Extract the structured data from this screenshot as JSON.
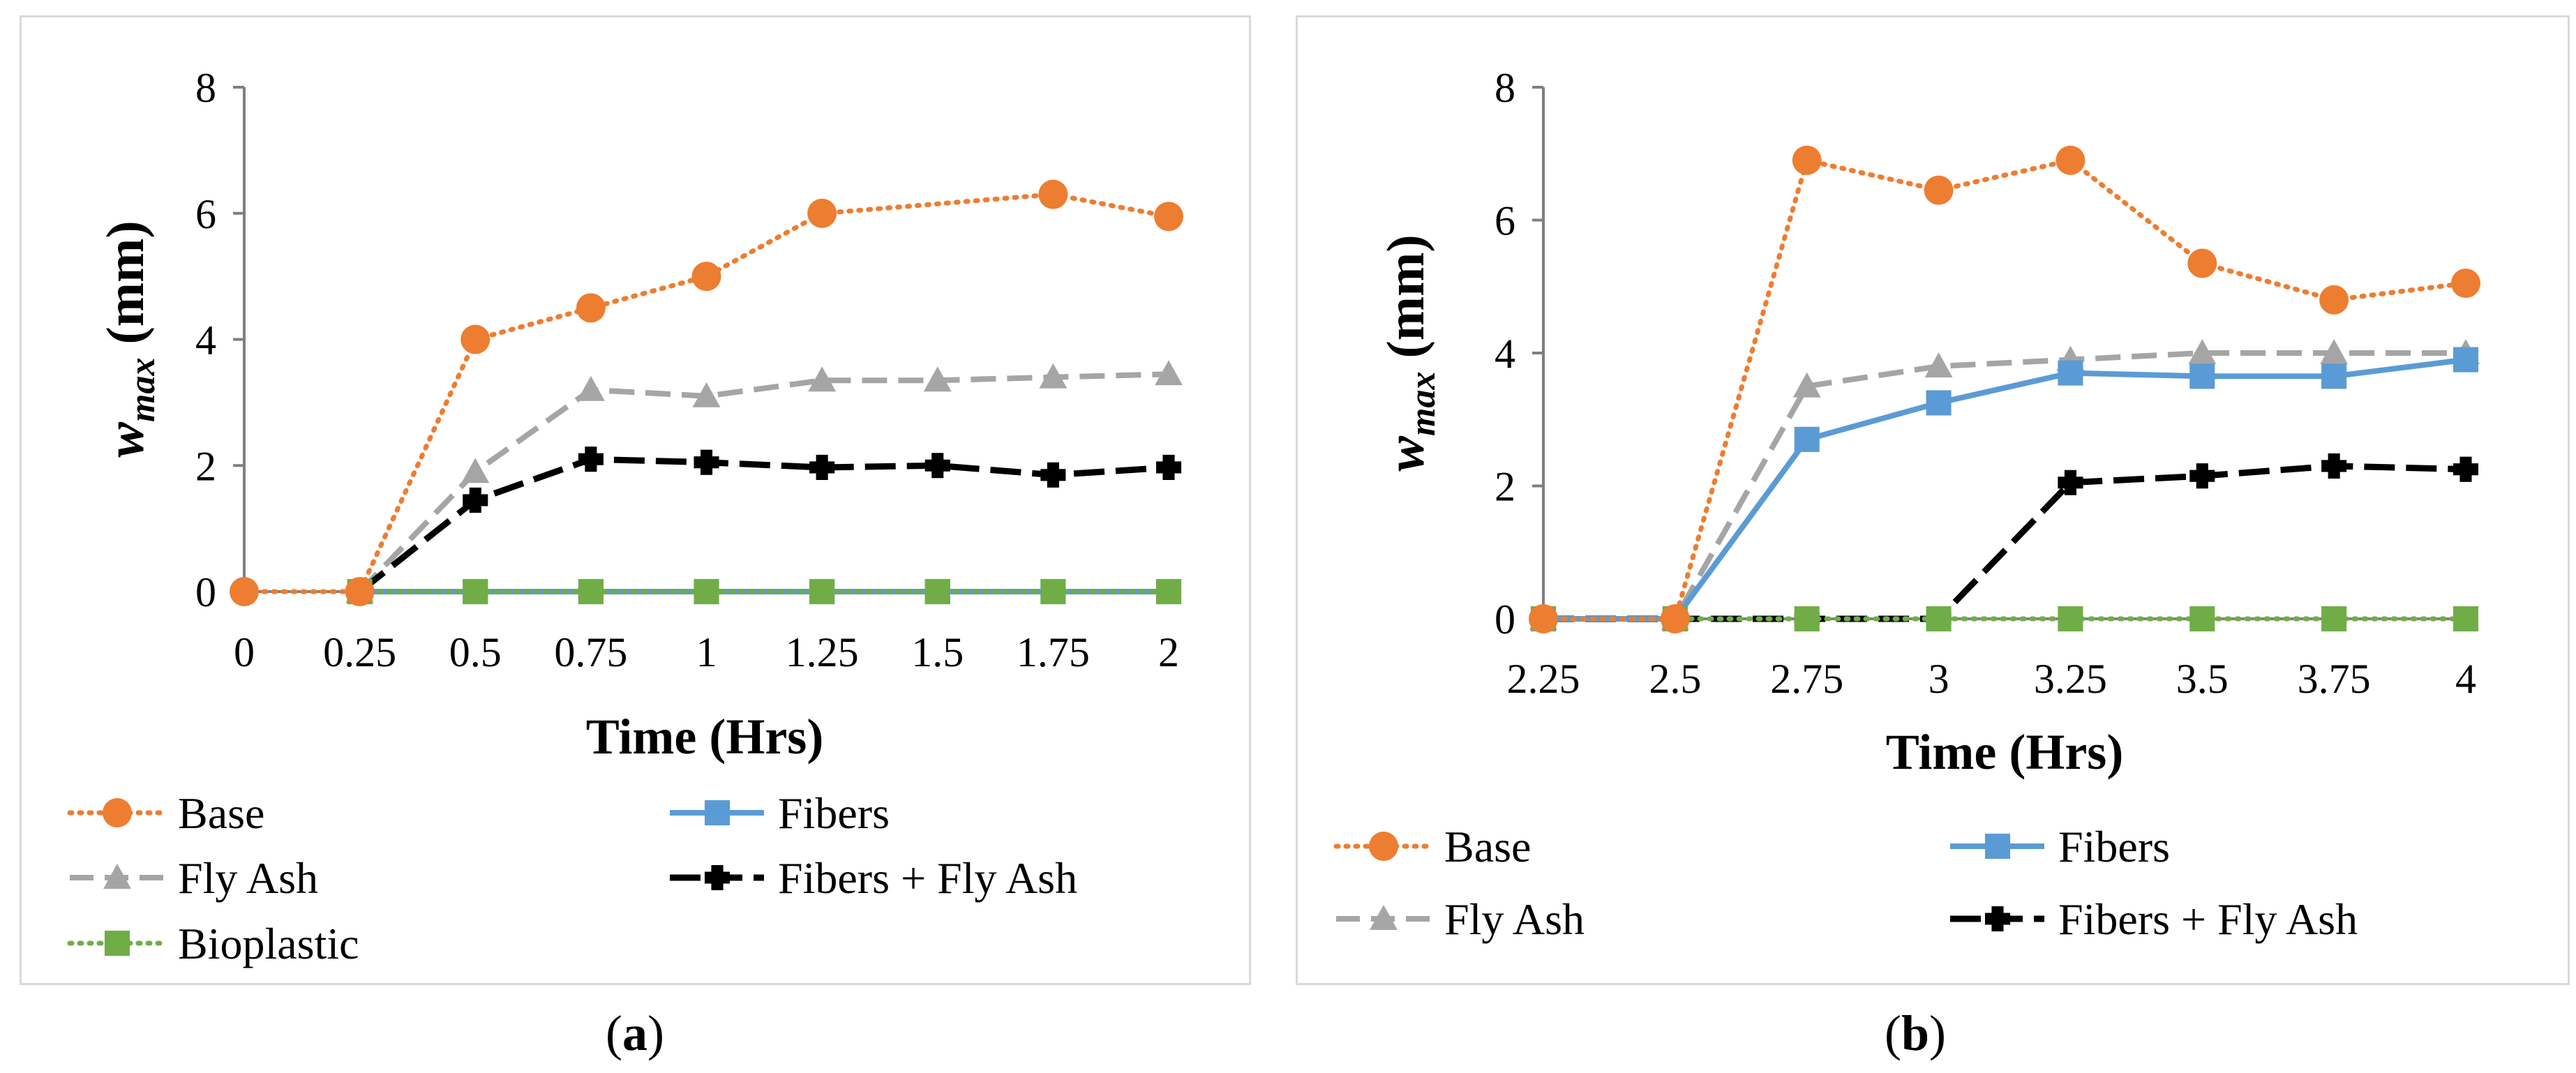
{
  "colors": {
    "base": "#ed7d31",
    "fibers": "#5b9bd5",
    "fly_ash": "#a5a5a5",
    "fibers_fly_ash": "#000000",
    "bioplastic": "#70ad47",
    "axis": "#7f7f7f",
    "panel_border": "#d9d9d9"
  },
  "captions": {
    "a": "a",
    "b": "b"
  },
  "chart_data": [
    {
      "type": "line",
      "panel": "a",
      "xlabel": "Time (Hrs)",
      "ylabel_main": "w",
      "ylabel_sub": "max",
      "ylabel_unit": "(mm)",
      "ylim": [
        0,
        8
      ],
      "yticks": [
        "0",
        "2",
        "4",
        "6",
        "8"
      ],
      "categories": [
        "0",
        "0.25",
        "0.5",
        "0.75",
        "1",
        "1.25",
        "1.5",
        "1.75",
        "2"
      ],
      "grid": false,
      "legend_position": "bottom",
      "series": [
        {
          "name": "Base",
          "key": "base",
          "values": [
            0,
            0,
            4.0,
            4.5,
            5.0,
            6.0,
            null,
            6.3,
            5.95
          ]
        },
        {
          "name": "Fibers",
          "key": "fibers",
          "values": [
            null,
            0,
            0,
            0,
            0,
            0,
            0,
            0,
            0
          ]
        },
        {
          "name": "Fly Ash",
          "key": "fly_ash",
          "values": [
            null,
            0,
            1.9,
            3.2,
            3.1,
            3.35,
            3.35,
            3.4,
            3.45
          ]
        },
        {
          "name": "Fibers + Fly Ash",
          "key": "fibers_fly_ash",
          "values": [
            null,
            0,
            1.45,
            2.1,
            2.05,
            1.97,
            2.0,
            1.85,
            1.97
          ]
        },
        {
          "name": "Bioplastic",
          "key": "bioplastic",
          "values": [
            null,
            0,
            0,
            0,
            0,
            0,
            0,
            0,
            0
          ]
        }
      ]
    },
    {
      "type": "line",
      "panel": "b",
      "xlabel": "Time (Hrs)",
      "ylabel_main": "w",
      "ylabel_sub": "max",
      "ylabel_unit": "(mm)",
      "ylim": [
        0,
        8
      ],
      "yticks": [
        "0",
        "2",
        "4",
        "6",
        "8"
      ],
      "categories": [
        "2.25",
        "2.5",
        "2.75",
        "3",
        "3.25",
        "3.5",
        "3.75",
        "4"
      ],
      "grid": false,
      "legend_position": "bottom",
      "series": [
        {
          "name": "Base",
          "key": "base",
          "values": [
            0,
            0,
            6.9,
            6.45,
            6.9,
            5.35,
            4.8,
            5.05
          ]
        },
        {
          "name": "Fibers",
          "key": "fibers",
          "values": [
            0,
            0,
            2.7,
            3.25,
            3.7,
            3.65,
            3.65,
            3.9
          ]
        },
        {
          "name": "Fly Ash",
          "key": "fly_ash",
          "values": [
            0,
            0,
            3.5,
            3.8,
            3.9,
            4.0,
            4.0,
            4.0
          ]
        },
        {
          "name": "Fibers + Fly Ash",
          "key": "fibers_fly_ash",
          "values": [
            0,
            0,
            0,
            0,
            2.05,
            2.15,
            2.3,
            2.25
          ]
        },
        {
          "name": "Bioplastic",
          "key": "bioplastic",
          "values": [
            0,
            0,
            0,
            0,
            0,
            0,
            0,
            0
          ]
        }
      ]
    }
  ]
}
